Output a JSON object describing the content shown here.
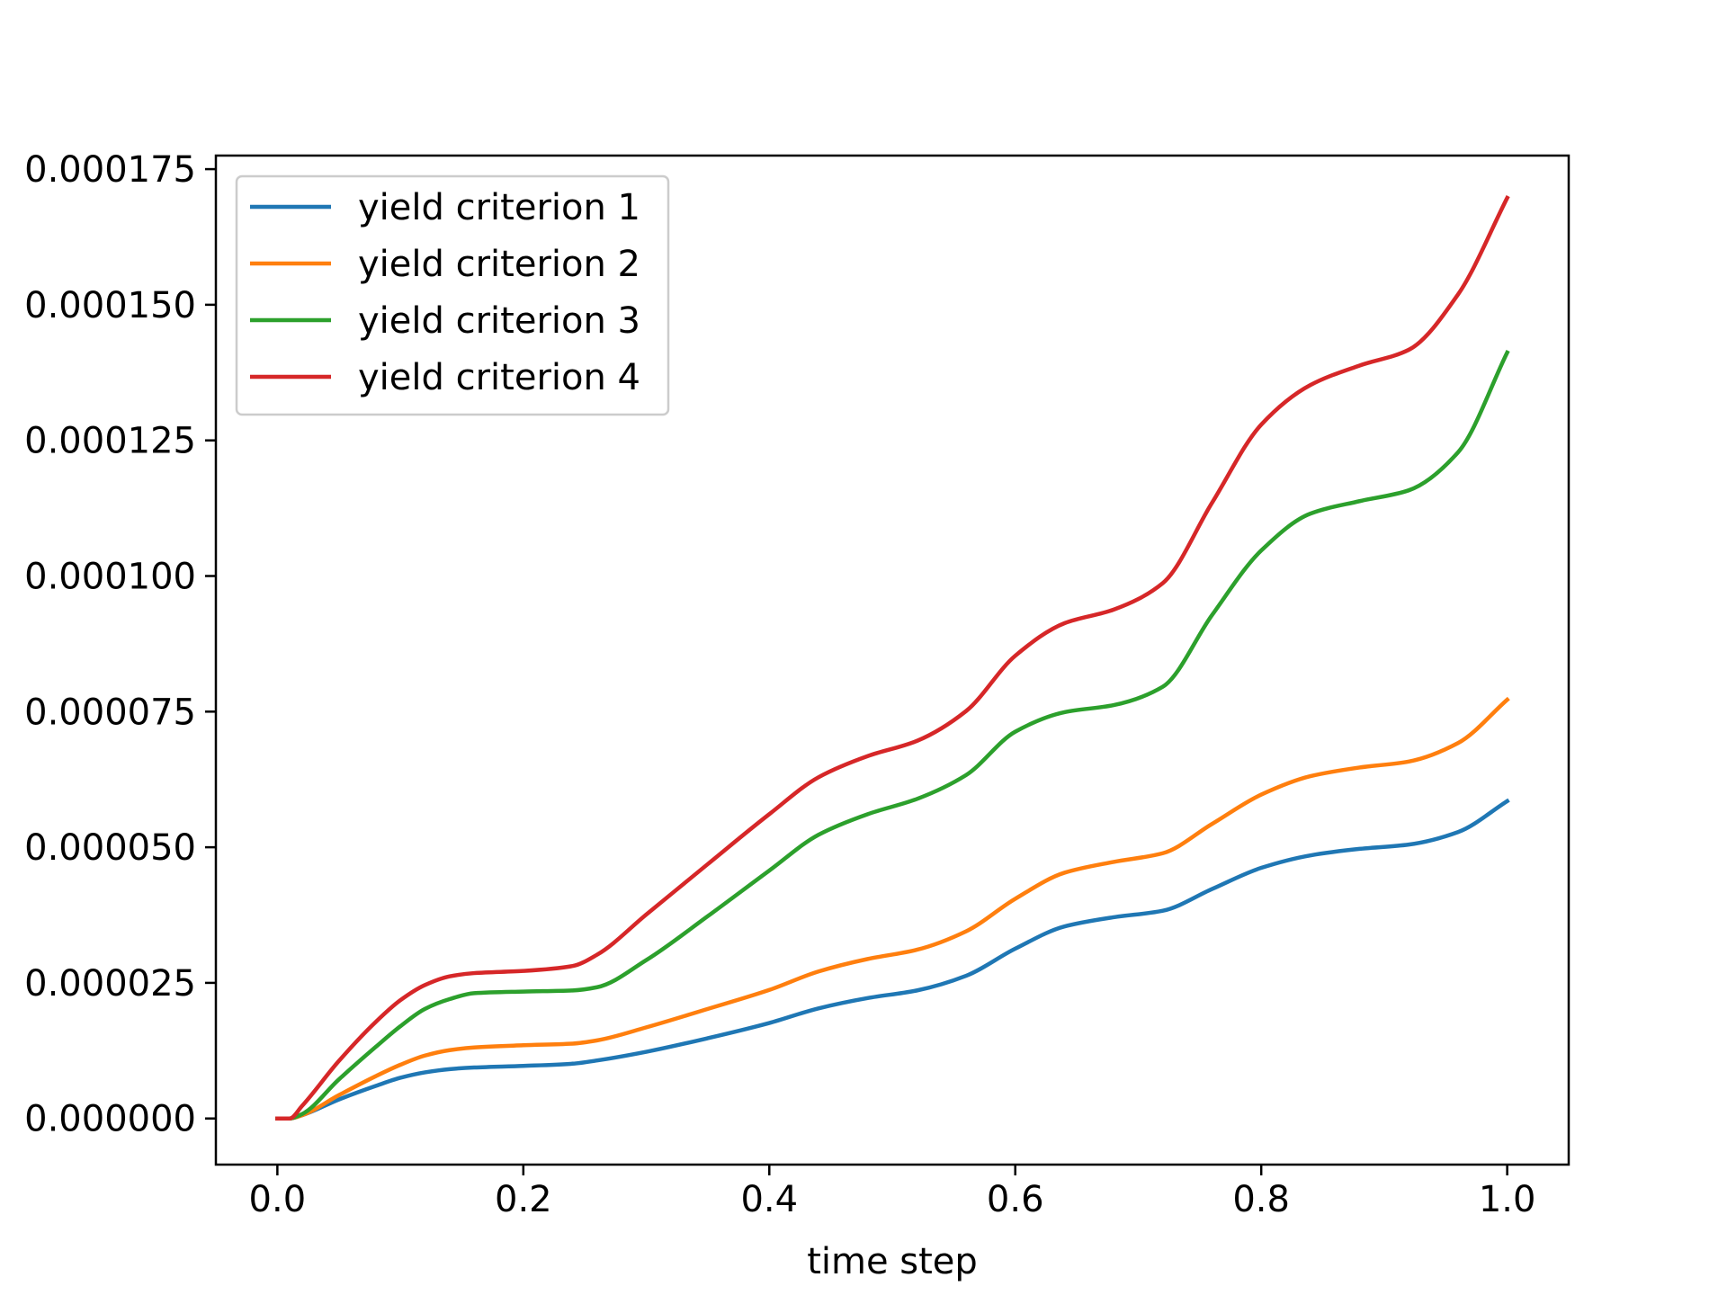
{
  "chart_data": {
    "type": "line",
    "title": "",
    "xlabel": "time step",
    "ylabel": "",
    "xlim": [
      -0.05,
      1.05
    ],
    "ylim": [
      -8.5e-06,
      0.0001775
    ],
    "x_ticks": [
      0.0,
      0.2,
      0.4,
      0.6,
      0.8,
      1.0
    ],
    "x_tick_labels": [
      "0.0",
      "0.2",
      "0.4",
      "0.6",
      "0.8",
      "1.0"
    ],
    "y_ticks": [
      0.0,
      2.5e-05,
      5e-05,
      7.5e-05,
      0.0001,
      0.000125,
      0.00015,
      0.000175
    ],
    "y_tick_labels": [
      "0.000000",
      "0.000025",
      "0.000050",
      "0.000075",
      "0.000100",
      "0.000125",
      "0.000150",
      "0.000175"
    ],
    "grid": false,
    "legend_position": "upper-left",
    "x": [
      0.0,
      0.01,
      0.02,
      0.05,
      0.08,
      0.1,
      0.12,
      0.14,
      0.16,
      0.2,
      0.24,
      0.26,
      0.3,
      0.35,
      0.4,
      0.44,
      0.48,
      0.52,
      0.56,
      0.6,
      0.64,
      0.68,
      0.72,
      0.76,
      0.8,
      0.84,
      0.88,
      0.92,
      0.96,
      1.0
    ],
    "series": [
      {
        "name": "yield criterion 1",
        "color": "#1f77b4",
        "values": [
          0.0,
          0.0,
          6e-07,
          3.5e-06,
          6e-06,
          7.5e-06,
          8.5e-06,
          9.1e-06,
          9.4e-06,
          9.7e-06,
          1.01e-05,
          1.07e-05,
          1.23e-05,
          1.48e-05,
          1.76e-05,
          2.03e-05,
          2.22e-05,
          2.36e-05,
          2.63e-05,
          3.13e-05,
          3.54e-05,
          3.71e-05,
          3.83e-05,
          4.23e-05,
          4.62e-05,
          4.85e-05,
          4.97e-05,
          5.05e-05,
          5.28e-05,
          5.85e-05
        ]
      },
      {
        "name": "yield criterion 2",
        "color": "#ff7f0e",
        "values": [
          0.0,
          0.0,
          6e-07,
          4.3e-06,
          7.8e-06,
          9.9e-06,
          1.16e-05,
          1.26e-05,
          1.31e-05,
          1.35e-05,
          1.38e-05,
          1.44e-05,
          1.68e-05,
          2.02e-05,
          2.37e-05,
          2.71e-05,
          2.94e-05,
          3.11e-05,
          3.45e-05,
          4.05e-05,
          4.53e-05,
          4.73e-05,
          4.89e-05,
          5.43e-05,
          5.97e-05,
          6.31e-05,
          6.47e-05,
          6.58e-05,
          6.92e-05,
          7.72e-05
        ]
      },
      {
        "name": "yield criterion 3",
        "color": "#2ca02c",
        "values": [
          0.0,
          0.0,
          8e-07,
          7.2e-06,
          1.32e-05,
          1.7e-05,
          2.02e-05,
          2.2e-05,
          2.31e-05,
          2.34e-05,
          2.36e-05,
          2.42e-05,
          2.92e-05,
          3.73e-05,
          4.57e-05,
          5.23e-05,
          5.61e-05,
          5.89e-05,
          6.33e-05,
          7.13e-05,
          7.49e-05,
          7.62e-05,
          7.96e-05,
          9.28e-05,
          0.0001047,
          0.0001115,
          0.0001138,
          0.0001158,
          0.0001228,
          0.0001412
        ]
      },
      {
        "name": "yield criterion 4",
        "color": "#d62728",
        "values": [
          0.0,
          0.0,
          2.3e-06,
          1.06e-05,
          1.78e-05,
          2.18e-05,
          2.46e-05,
          2.62e-05,
          2.68e-05,
          2.72e-05,
          2.81e-05,
          3.02e-05,
          3.76e-05,
          4.69e-05,
          5.61e-05,
          6.29e-05,
          6.68e-05,
          6.96e-05,
          7.51e-05,
          8.53e-05,
          9.13e-05,
          9.38e-05,
          9.87e-05,
          0.0001135,
          0.0001279,
          0.0001352,
          0.0001388,
          0.0001417,
          0.0001519,
          0.0001697
        ]
      }
    ]
  }
}
